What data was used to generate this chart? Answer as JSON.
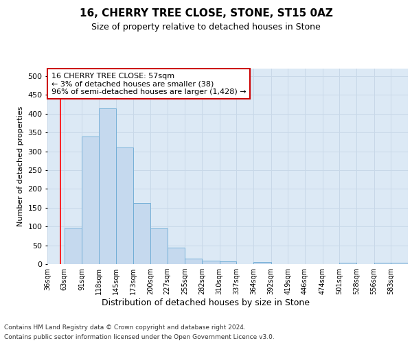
{
  "title": "16, CHERRY TREE CLOSE, STONE, ST15 0AZ",
  "subtitle": "Size of property relative to detached houses in Stone",
  "xlabel": "Distribution of detached houses by size in Stone",
  "ylabel": "Number of detached properties",
  "footer_line1": "Contains HM Land Registry data © Crown copyright and database right 2024.",
  "footer_line2": "Contains public sector information licensed under the Open Government Licence v3.0.",
  "annotation_line1": "16 CHERRY TREE CLOSE: 57sqm",
  "annotation_line2": "← 3% of detached houses are smaller (38)",
  "annotation_line3": "96% of semi-detached houses are larger (1,428) →",
  "bar_color": "#c5d9ee",
  "bar_edge_color": "#6aaad4",
  "red_line_x": 57,
  "annotation_box_color": "#ffffff",
  "annotation_box_edge_color": "#cc0000",
  "categories": [
    "36sqm",
    "63sqm",
    "91sqm",
    "118sqm",
    "145sqm",
    "173sqm",
    "200sqm",
    "227sqm",
    "255sqm",
    "282sqm",
    "310sqm",
    "337sqm",
    "364sqm",
    "392sqm",
    "419sqm",
    "446sqm",
    "474sqm",
    "501sqm",
    "528sqm",
    "556sqm",
    "583sqm"
  ],
  "bin_edges": [
    36,
    63,
    91,
    118,
    145,
    173,
    200,
    227,
    255,
    282,
    310,
    337,
    364,
    392,
    419,
    446,
    474,
    501,
    528,
    556,
    583,
    610
  ],
  "values": [
    0,
    96,
    340,
    415,
    310,
    163,
    95,
    43,
    14,
    10,
    7,
    0,
    5,
    0,
    0,
    0,
    0,
    3,
    0,
    3,
    3
  ],
  "ylim": [
    0,
    520
  ],
  "yticks": [
    0,
    50,
    100,
    150,
    200,
    250,
    300,
    350,
    400,
    450,
    500
  ],
  "grid_color": "#c8d8e8",
  "fig_bg_color": "#ffffff",
  "plot_bg_color": "#dce9f5",
  "title_fontsize": 11,
  "subtitle_fontsize": 9,
  "ylabel_fontsize": 8,
  "xlabel_fontsize": 9,
  "tick_fontsize": 7,
  "footer_fontsize": 6.5,
  "annotation_fontsize": 8
}
